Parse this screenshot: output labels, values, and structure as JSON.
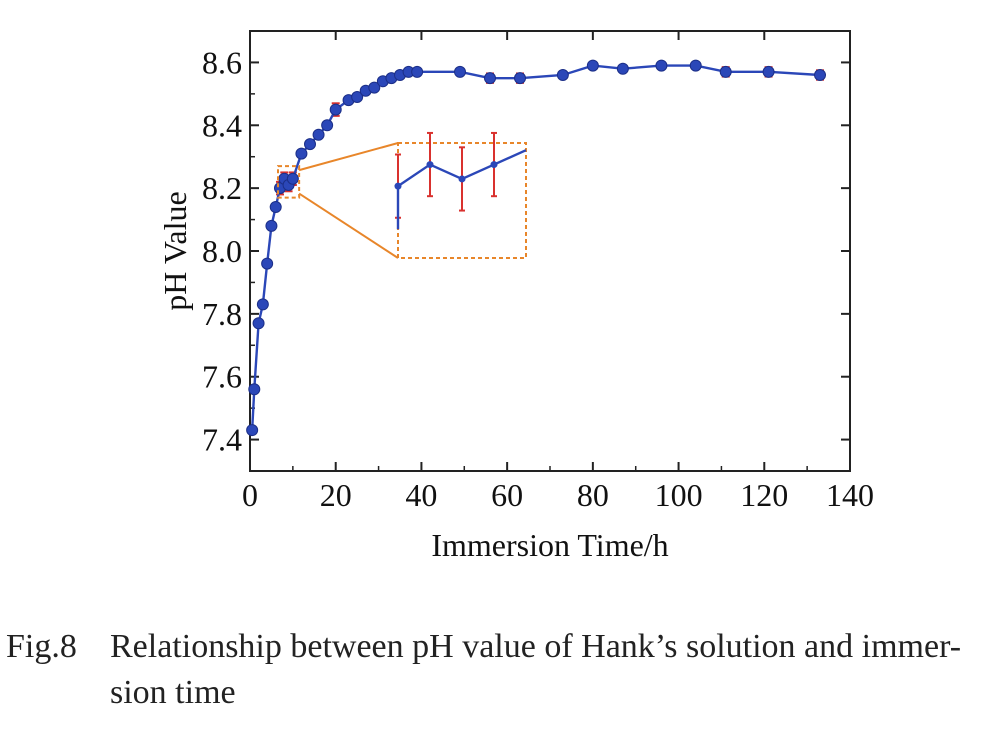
{
  "chart_data": {
    "type": "line",
    "xlabel": "Immersion Time/h",
    "ylabel": "pH Value",
    "xlim": [
      0,
      140
    ],
    "ylim": [
      7.3,
      8.7
    ],
    "xticks": [
      "0",
      "20",
      "40",
      "60",
      "80",
      "100",
      "120",
      "140"
    ],
    "yticks": [
      "7.4",
      "7.6",
      "7.8",
      "8.0",
      "8.2",
      "8.4",
      "8.6"
    ],
    "grid": false,
    "legend": "none",
    "colors": {
      "line": "#2b47b8",
      "marker": "#2b47b8",
      "errorbar": "#d9312e",
      "inset": "#e8862a"
    },
    "series": [
      {
        "x": [
          0.5,
          1,
          2,
          3,
          4,
          5,
          6,
          7,
          8,
          9,
          10,
          12,
          14,
          16,
          18,
          20,
          23,
          25,
          27,
          29,
          31,
          33,
          35,
          37,
          39,
          49,
          56,
          63,
          73,
          80,
          87,
          96,
          104,
          111,
          121,
          133
        ],
        "y": [
          7.43,
          7.56,
          7.77,
          7.83,
          7.96,
          8.08,
          8.14,
          8.2,
          8.23,
          8.21,
          8.23,
          8.31,
          8.34,
          8.37,
          8.4,
          8.45,
          8.48,
          8.49,
          8.51,
          8.52,
          8.54,
          8.55,
          8.56,
          8.57,
          8.57,
          8.57,
          8.55,
          8.55,
          8.56,
          8.59,
          8.58,
          8.59,
          8.59,
          8.57,
          8.57,
          8.56
        ],
        "error": [
          0.01,
          0.01,
          0.01,
          0.01,
          0.01,
          0.01,
          0.01,
          0.02,
          0.02,
          0.02,
          0.02,
          0.01,
          0.01,
          0.01,
          0.01,
          0.02,
          0.01,
          0.01,
          0.01,
          0.01,
          0.01,
          0.01,
          0.01,
          0.01,
          0.01,
          0.01,
          0.015,
          0.015,
          0.01,
          0.01,
          0.01,
          0.01,
          0.01,
          0.015,
          0.015,
          0.015
        ]
      }
    ],
    "inset": {
      "x_range": [
        7,
        11
      ],
      "y_range": [
        8.17,
        8.27
      ]
    }
  },
  "caption": {
    "label": "Fig.8",
    "line1": "Relationship between pH value of Hank’s solution and immer-",
    "line2": "sion time"
  }
}
